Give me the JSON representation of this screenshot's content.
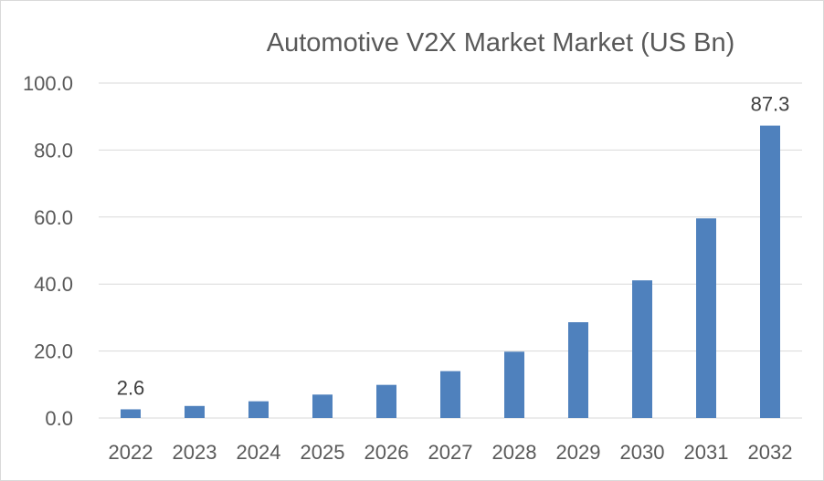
{
  "chart_data": {
    "type": "bar",
    "title": "Automotive V2X Market Market (US Bn)",
    "xlabel": "",
    "ylabel": "",
    "categories": [
      "2022",
      "2023",
      "2024",
      "2025",
      "2026",
      "2027",
      "2028",
      "2029",
      "2030",
      "2031",
      "2032"
    ],
    "series": [
      {
        "values": [
          2.6,
          3.6,
          5.0,
          7.0,
          9.9,
          14.0,
          19.8,
          28.6,
          41.1,
          59.6,
          87.3
        ],
        "color": "#4f81bd"
      }
    ],
    "data_labels": [
      {
        "category": "2022",
        "text": "2.6"
      },
      {
        "category": "2032",
        "text": "87.3"
      }
    ],
    "ylim": [
      0,
      100
    ],
    "yticks": [
      "0.0",
      "20.0",
      "40.0",
      "60.0",
      "80.0",
      "100.0"
    ],
    "grid": true,
    "legend": "none"
  }
}
